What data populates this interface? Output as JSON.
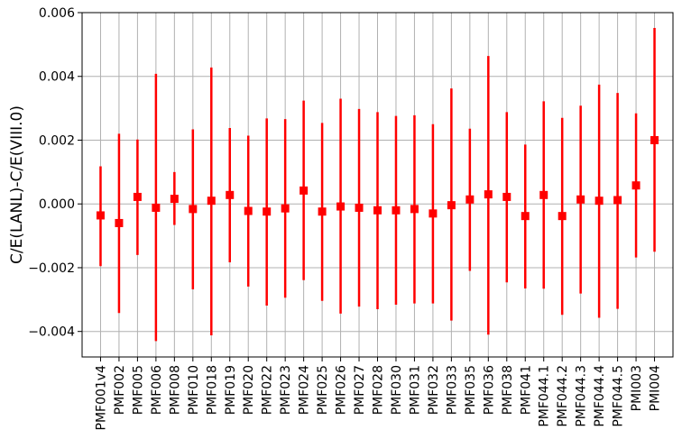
{
  "chart_data": {
    "type": "errorbar",
    "title": "",
    "xlabel": "",
    "ylabel": "C/E(LANL)-C/E(VIII.0)",
    "ylim": [
      -0.0048,
      0.006
    ],
    "yticks": [
      -0.004,
      -0.002,
      0.0,
      0.002,
      0.004,
      0.006
    ],
    "ytick_labels": [
      "−0.004",
      "−0.002",
      "0.000",
      "0.002",
      "0.004",
      "0.006"
    ],
    "grid": true,
    "marker_color": "#ff0000",
    "categories": [
      "PMF001v4",
      "PMF002",
      "PMF005",
      "PMF006",
      "PMF008",
      "PMF010",
      "PMF018",
      "PMF019",
      "PMF020",
      "PMF022",
      "PMF023",
      "PMF024",
      "PMF025",
      "PMF026",
      "PMF027",
      "PMF028",
      "PMF030",
      "PMF031",
      "PMF032",
      "PMF033",
      "PMF035",
      "PMF036",
      "PMF038",
      "PMF041",
      "PMF044.1",
      "PMF044.2",
      "PMF044.3",
      "PMF044.4",
      "PMF044.5",
      "PMI003",
      "PMI004"
    ],
    "values": [
      -0.00036,
      -0.0006,
      0.00022,
      -0.00012,
      0.00016,
      -0.00016,
      0.0001,
      0.00028,
      -0.00022,
      -0.00024,
      -0.00014,
      0.00042,
      -0.00024,
      -8e-05,
      -0.00012,
      -0.0002,
      -0.0002,
      -0.00016,
      -0.0003,
      -4e-05,
      0.00014,
      0.0003,
      0.00022,
      -0.00038,
      0.00028,
      -0.00038,
      0.00014,
      0.0001,
      0.00012,
      0.00058,
      0.002
    ],
    "err_low": [
      -0.00195,
      -0.00342,
      -0.0016,
      -0.0043,
      -0.00066,
      -0.00268,
      -0.00412,
      -0.00183,
      -0.00259,
      -0.00319,
      -0.00294,
      -0.00239,
      -0.00304,
      -0.00344,
      -0.00322,
      -0.0033,
      -0.00316,
      -0.00312,
      -0.00312,
      -0.00366,
      -0.0021,
      -0.0041,
      -0.00246,
      -0.00265,
      -0.00266,
      -0.00348,
      -0.00281,
      -0.00357,
      -0.00329,
      -0.00168,
      -0.0015
    ],
    "err_high": [
      0.00118,
      0.0022,
      0.00202,
      0.00408,
      0.001,
      0.00234,
      0.00428,
      0.00238,
      0.00214,
      0.00268,
      0.00266,
      0.00324,
      0.00254,
      0.0033,
      0.00298,
      0.00288,
      0.00276,
      0.00278,
      0.0025,
      0.00362,
      0.00236,
      0.00464,
      0.00288,
      0.00186,
      0.00322,
      0.0027,
      0.00308,
      0.00374,
      0.00348,
      0.00284,
      0.00552
    ]
  }
}
